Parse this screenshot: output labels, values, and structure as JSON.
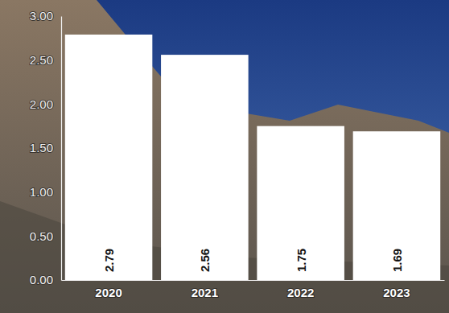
{
  "chart_data": {
    "type": "bar",
    "categories": [
      "2020",
      "2021",
      "2022",
      "2023"
    ],
    "values": [
      2.79,
      2.56,
      1.75,
      1.69
    ],
    "color": "#ffffff",
    "ylim": [
      0,
      3
    ],
    "yticks": [
      {
        "value": 0,
        "label": "0.00"
      },
      {
        "value": 0.5,
        "label": "0.50"
      },
      {
        "value": 1,
        "label": "1.00"
      },
      {
        "value": 1.5,
        "label": "1.50"
      },
      {
        "value": 2,
        "label": "2.00"
      },
      {
        "value": 2.5,
        "label": "2.50"
      },
      {
        "value": 3,
        "label": "3.00"
      }
    ],
    "grid": false,
    "data_labels": true
  }
}
